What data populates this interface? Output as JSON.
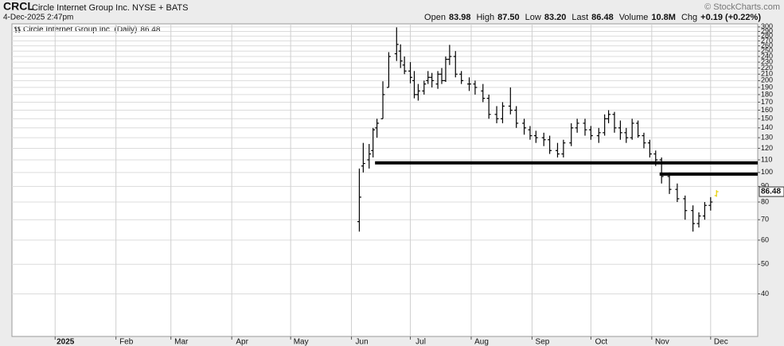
{
  "chart_data": {
    "type": "ohlc",
    "symbol": "CRCL",
    "company": "Circle Internet Group Inc.",
    "exchange": "NYSE + BATS",
    "timestamp": "4-Dec-2025 2:47pm",
    "credit": "© StockCharts.com",
    "quote": [
      {
        "label": "Open",
        "value": "83.98"
      },
      {
        "label": "High",
        "value": "87.50"
      },
      {
        "label": "Low",
        "value": "83.20"
      },
      {
        "label": "Last",
        "value": "86.48"
      },
      {
        "label": "Volume",
        "value": "10.8M"
      },
      {
        "label": "Chg",
        "value": "+0.19 (+0.22%)"
      }
    ],
    "log_scale": true,
    "grid": true,
    "xlim": [
      -22,
      358
    ],
    "xticks": [
      {
        "value": 0,
        "label": "2025"
      },
      {
        "value": 31,
        "label": "Feb"
      },
      {
        "value": 59,
        "label": "Mar"
      },
      {
        "value": 90,
        "label": "Apr"
      },
      {
        "value": 120,
        "label": "May"
      },
      {
        "value": 151,
        "label": "Jun"
      },
      {
        "value": 181,
        "label": "Jul"
      },
      {
        "value": 212,
        "label": "Aug"
      },
      {
        "value": 243,
        "label": "Sep"
      },
      {
        "value": 273,
        "label": "Oct"
      },
      {
        "value": 304,
        "label": "Nov"
      },
      {
        "value": 334,
        "label": "Dec"
      }
    ],
    "ylim": [
      29,
      307
    ],
    "yticks": [
      40,
      50,
      60,
      70,
      80,
      90,
      100,
      110,
      120,
      130,
      140,
      150,
      160,
      170,
      180,
      190,
      200,
      210,
      220,
      230,
      240,
      250,
      260,
      270,
      280,
      290,
      300
    ],
    "series": [
      {
        "name": "Circle Internet Group Inc. (Daily)",
        "color": "#000000",
        "last_color": "#e6cf00",
        "x": [
          155,
          157,
          160,
          162,
          164,
          167,
          170,
          174,
          176,
          178,
          181,
          183,
          185,
          188,
          190,
          192,
          195,
          197,
          199,
          201,
          204,
          207,
          211,
          214,
          218,
          221,
          225,
          228,
          232,
          235,
          239,
          242,
          245,
          249,
          252,
          256,
          259,
          263,
          266,
          270,
          273,
          277,
          280,
          282,
          285,
          288,
          291,
          294,
          297,
          300,
          303,
          306,
          309,
          313,
          317,
          321,
          325,
          328,
          331,
          334,
          337
        ],
        "open": [
          69,
          105,
          110,
          118,
          140,
          150,
          190,
          245,
          250,
          225,
          215,
          200,
          180,
          185,
          200,
          205,
          195,
          210,
          200,
          235,
          240,
          210,
          195,
          195,
          185,
          175,
          155,
          150,
          165,
          160,
          145,
          138,
          132,
          130,
          128,
          118,
          115,
          125,
          140,
          145,
          138,
          132,
          135,
          150,
          155,
          140,
          135,
          130,
          145,
          132,
          125,
          115,
          110,
          97,
          88,
          82,
          75,
          68,
          72,
          78,
          83.98
        ],
        "high": [
          103,
          125,
          124,
          140,
          150,
          199,
          248,
          299,
          263,
          240,
          230,
          215,
          195,
          200,
          215,
          212,
          215,
          220,
          240,
          262,
          250,
          215,
          205,
          200,
          195,
          180,
          165,
          170,
          190,
          165,
          150,
          142,
          137,
          135,
          132,
          125,
          128,
          145,
          150,
          150,
          142,
          140,
          155,
          160,
          158,
          148,
          140,
          150,
          148,
          135,
          128,
          118,
          112,
          100,
          92,
          84,
          78,
          74,
          80,
          83,
          87.5
        ],
        "low": [
          64,
          100,
          103,
          112,
          130,
          150,
          190,
          232,
          220,
          210,
          196,
          175,
          172,
          180,
          195,
          190,
          188,
          195,
          198,
          225,
          205,
          195,
          185,
          180,
          170,
          150,
          145,
          145,
          155,
          140,
          133,
          128,
          125,
          122,
          115,
          112,
          112,
          122,
          135,
          132,
          128,
          125,
          132,
          145,
          135,
          128,
          125,
          128,
          130,
          120,
          112,
          105,
          92,
          85,
          80,
          70,
          64,
          66,
          70,
          75,
          83.2
        ],
        "close": [
          83,
          107,
          115,
          138,
          145,
          180,
          240,
          263,
          232,
          215,
          205,
          180,
          185,
          195,
          205,
          200,
          210,
          200,
          235,
          240,
          210,
          200,
          195,
          190,
          175,
          155,
          150,
          165,
          160,
          145,
          140,
          132,
          130,
          128,
          118,
          115,
          125,
          140,
          145,
          138,
          132,
          135,
          150,
          155,
          140,
          135,
          130,
          145,
          132,
          125,
          115,
          110,
          97,
          88,
          82,
          75,
          68,
          72,
          78,
          80,
          86.48
        ]
      }
    ],
    "hlines": [
      {
        "value": 107.5,
        "x": [
          163,
          358
        ]
      },
      {
        "value": 98.8,
        "x": [
          308,
          358
        ]
      }
    ]
  }
}
